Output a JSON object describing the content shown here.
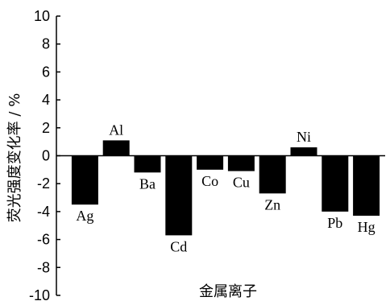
{
  "chart_data": {
    "type": "bar",
    "categories": [
      "Ag",
      "Al",
      "Ba",
      "Cd",
      "Co",
      "Cu",
      "Zn",
      "Ni",
      "Pb",
      "Hg"
    ],
    "values": [
      -3.5,
      1.1,
      -1.2,
      -5.7,
      -1.0,
      -1.1,
      -2.7,
      0.6,
      -4.0,
      -4.3
    ],
    "ylabel": "荧光强度变化率 / %",
    "xlabel": "金属离子",
    "ylim": [
      -10,
      10
    ],
    "yticks": [
      "10",
      "8",
      "6",
      "4",
      "2",
      "0",
      "-2",
      "-4",
      "-6",
      "-8",
      "-10"
    ],
    "grid": false,
    "legend": false
  }
}
